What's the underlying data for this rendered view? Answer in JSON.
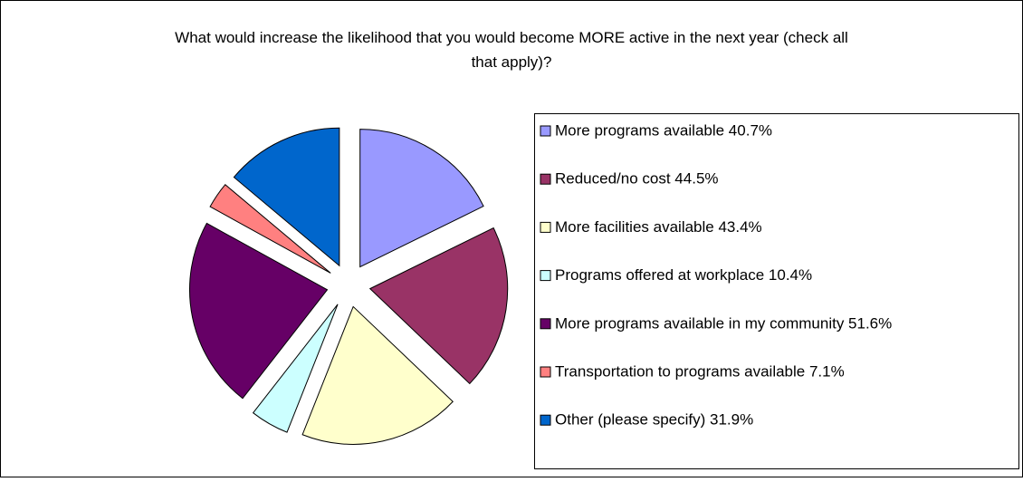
{
  "chart_data": {
    "type": "pie",
    "title": "What would increase the likelihood that you would become MORE active in the next year (check all that apply)?",
    "categories": [
      "More programs available 40.7%",
      "Reduced/no cost 44.5%",
      "More facilities available 43.4%",
      "Programs offered at workplace 10.4%",
      "More programs available in my community 51.6%",
      "Transportation to programs available 7.1%",
      "Other (please specify) 31.9%"
    ],
    "values": [
      40.7,
      44.5,
      43.4,
      10.4,
      51.6,
      7.1,
      31.9
    ],
    "colors": [
      "#9999ff",
      "#993366",
      "#ffffcc",
      "#ccffff",
      "#660066",
      "#ff8080",
      "#0066cc"
    ],
    "legend": "right"
  }
}
